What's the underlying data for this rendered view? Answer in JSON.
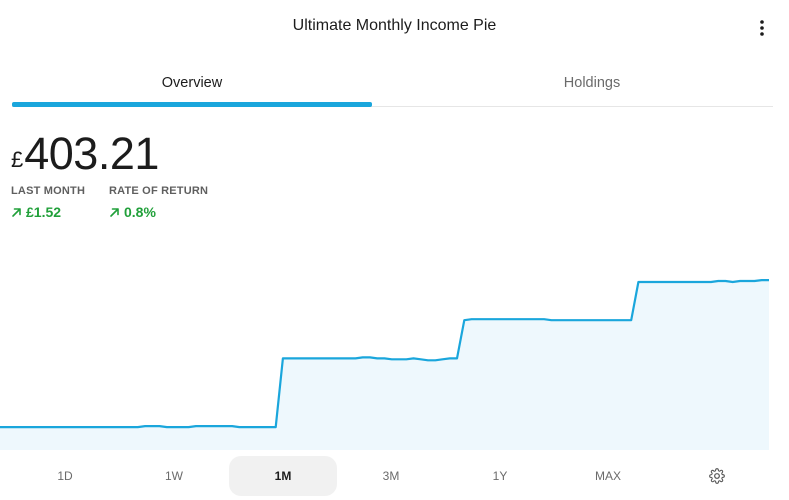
{
  "header": {
    "title": "Ultimate Monthly Income Pie",
    "more_icon": "more-vertical-icon"
  },
  "tabs": [
    {
      "label": "Overview",
      "active": true
    },
    {
      "label": "Holdings",
      "active": false
    }
  ],
  "portfolio": {
    "currency_symbol": "£",
    "value": "403.21"
  },
  "stats": [
    {
      "label": "LAST MONTH",
      "value": "£1.52",
      "trend": "up",
      "trend_icon": "arrow-up-right-icon"
    },
    {
      "label": "RATE OF RETURN",
      "value": "0.8%",
      "trend": "up",
      "trend_icon": "arrow-up-right-icon"
    }
  ],
  "colors": {
    "accent": "#1aa6dc",
    "positive": "#21a03a",
    "fill": "#eef8fd"
  },
  "periods": [
    {
      "label": "1D",
      "active": false
    },
    {
      "label": "1W",
      "active": false
    },
    {
      "label": "1M",
      "active": true
    },
    {
      "label": "3M",
      "active": false
    },
    {
      "label": "1Y",
      "active": false
    },
    {
      "label": "MAX",
      "active": false
    }
  ],
  "settings_icon": "gear-icon",
  "chart_data": {
    "type": "area",
    "title": "",
    "xlabel": "",
    "ylabel": "",
    "grid": false,
    "ylim": [
      385,
      407
    ],
    "series": [
      {
        "values": [
          387.4,
          387.4,
          387.4,
          387.4,
          387.4,
          387.4,
          387.4,
          387.4,
          387.4,
          387.4,
          387.4,
          387.4,
          387.4,
          387.4,
          387.4,
          387.4,
          387.4,
          387.4,
          387.4,
          387.4,
          387.5,
          387.5,
          387.5,
          387.4,
          387.4,
          387.4,
          387.4,
          387.5,
          387.5,
          387.5,
          387.5,
          387.5,
          387.5,
          387.4,
          387.4,
          387.4,
          387.4,
          387.4,
          387.4,
          394.6,
          394.6,
          394.6,
          394.6,
          394.6,
          394.6,
          394.6,
          394.6,
          394.6,
          394.6,
          394.6,
          394.7,
          394.7,
          394.6,
          394.6,
          394.5,
          394.5,
          394.5,
          394.6,
          394.5,
          394.4,
          394.4,
          394.5,
          394.6,
          394.6,
          398.6,
          398.7,
          398.7,
          398.7,
          398.7,
          398.7,
          398.7,
          398.7,
          398.7,
          398.7,
          398.7,
          398.7,
          398.6,
          398.6,
          398.6,
          398.6,
          398.6,
          398.6,
          398.6,
          398.6,
          398.6,
          398.6,
          398.6,
          398.6,
          402.6,
          402.6,
          402.6,
          402.6,
          402.6,
          402.6,
          402.6,
          402.6,
          402.6,
          402.6,
          402.6,
          402.7,
          402.7,
          402.6,
          402.7,
          402.7,
          402.7,
          402.8,
          402.8
        ]
      }
    ]
  }
}
